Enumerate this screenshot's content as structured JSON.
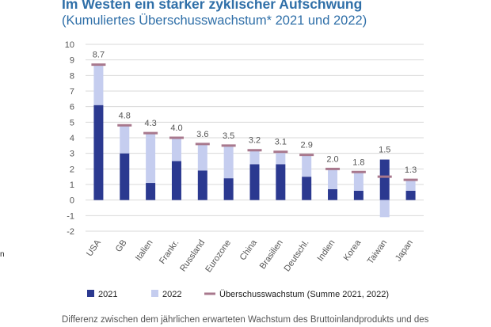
{
  "header": {
    "title": "Im Westen ein starker zyklischer Aufschwung",
    "subtitle": "(Kumuliertes Überschusswachstum* 2021 und 2022)"
  },
  "footnote": "Differenz zwischen dem jährlichen erwarteten Wachstum des Bruttoinlandprodukts und des",
  "edge_mark": "n",
  "colors": {
    "series_2021": "#2b3990",
    "series_2022": "#c5cdef",
    "total_marker": "#a8788d",
    "grid": "#d9d9d9",
    "text": "#555555",
    "title": "#2f6fa8"
  },
  "chart_data": {
    "type": "bar",
    "stacked": true,
    "categories": [
      "USA",
      "GB",
      "Italien",
      "Frankr.",
      "Russland",
      "Eurozone",
      "China",
      "Brasilien",
      "Deutschl.",
      "Indien",
      "Korea",
      "Taiwan",
      "Japan"
    ],
    "series": [
      {
        "name": "2021",
        "values": [
          6.1,
          3.0,
          1.1,
          2.5,
          1.9,
          1.4,
          2.3,
          2.3,
          1.5,
          0.7,
          0.6,
          2.6,
          0.6
        ]
      },
      {
        "name": "2022",
        "values": [
          2.6,
          1.8,
          3.2,
          1.5,
          1.7,
          2.1,
          0.9,
          0.8,
          1.4,
          1.3,
          1.2,
          -1.1,
          0.7
        ]
      }
    ],
    "totals": {
      "name": "Überschusswachstum (Summe 2021, 2022)",
      "values": [
        8.7,
        4.8,
        4.3,
        4.0,
        3.6,
        3.5,
        3.2,
        3.1,
        2.9,
        2.0,
        1.8,
        1.5,
        1.3
      ],
      "labels": [
        "8.7",
        "4.8",
        "4.3",
        "4.0",
        "3.6",
        "3.5",
        "3.2",
        "3.1",
        "2.9",
        "2.0",
        "1.8",
        "1.5",
        "1.3"
      ]
    },
    "title": "Im Westen ein starker zyklischer Aufschwung",
    "subtitle": "(Kumuliertes Überschusswachstum* 2021 und 2022)",
    "xlabel": "",
    "ylabel": "",
    "ylim": [
      -2,
      10
    ],
    "yticks": [
      -2,
      -1,
      0,
      1,
      2,
      3,
      4,
      5,
      6,
      7,
      8,
      9,
      10
    ],
    "grid": true,
    "legend": "bottom"
  }
}
